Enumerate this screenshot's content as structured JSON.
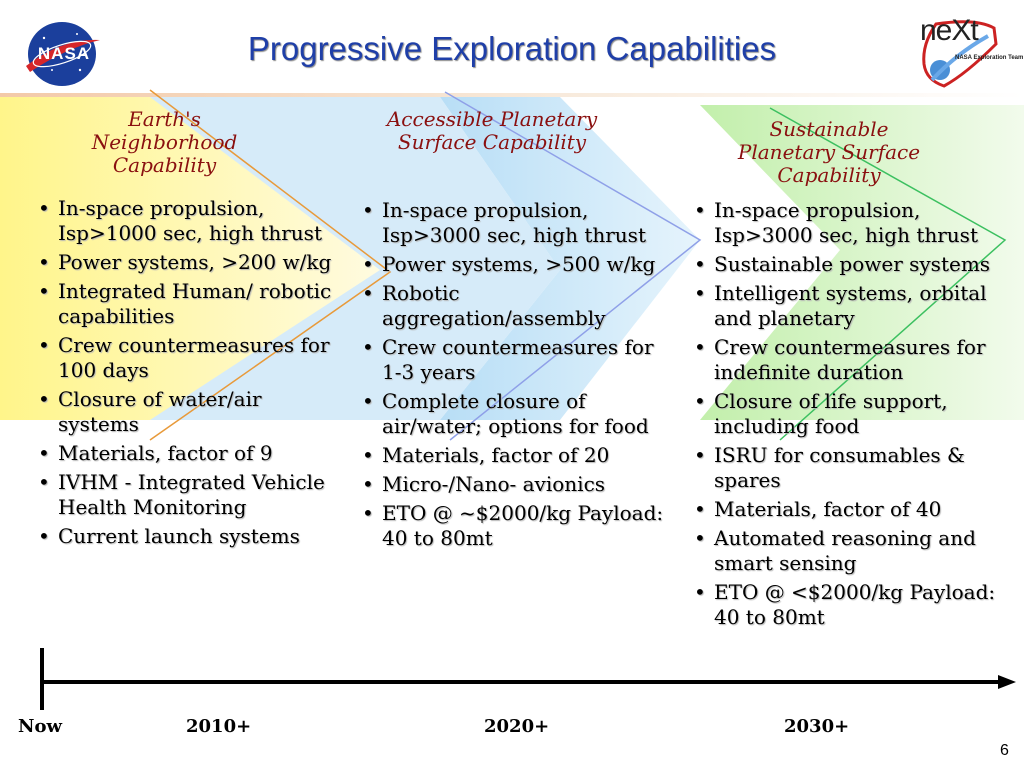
{
  "title": "Progressive Exploration Capabilities",
  "logos": {
    "left": {
      "icon": "nasa-meatball-logo",
      "text": "NASA"
    },
    "right": {
      "icon": "next-logo",
      "text": "neXt",
      "subtext": "NASA Exploration Team"
    }
  },
  "phases": [
    {
      "title": "Earth's Neighborhood Capability",
      "color": "#ffee88",
      "items": [
        "In-space propulsion, Isp>1000 sec, high thrust",
        "Power systems, >200 w/kg",
        "Integrated Human/ robotic capabilities",
        "Crew countermeasures for 100 days",
        "Closure of water/air systems",
        "Materials, factor of 9",
        "IVHM - Integrated Vehicle Health Monitoring",
        "Current launch systems"
      ]
    },
    {
      "title": "Accessible Planetary Surface Capability",
      "color": "#bfe3f7",
      "items": [
        "In-space propulsion, Isp>3000 sec, high thrust",
        "Power systems,  >500 w/kg",
        "Robotic aggregation/assembly",
        "Crew countermeasures for 1-3 years",
        "Complete closure of air/water; options for food",
        "Materials, factor of 20",
        "Micro-/Nano-  avionics",
        "ETO @ ~$2000/kg Payload: 40 to 80mt"
      ]
    },
    {
      "title": "Sustainable Planetary Surface Capability",
      "color": "#c8f0b0",
      "items": [
        "In-space propulsion, Isp>3000 sec, high thrust",
        "Sustainable power systems",
        "Intelligent systems, orbital and planetary",
        "Crew countermeasures for indefinite duration",
        "Closure of life support, including food",
        "ISRU for consumables & spares",
        "Materials, factor of 40",
        "Automated reasoning and smart sensing",
        "ETO @ <$2000/kg Payload: 40 to 80mt"
      ]
    }
  ],
  "timeline": {
    "labels": [
      "Now",
      "2010+",
      "2020+",
      "2030+"
    ]
  },
  "page_number": "6"
}
